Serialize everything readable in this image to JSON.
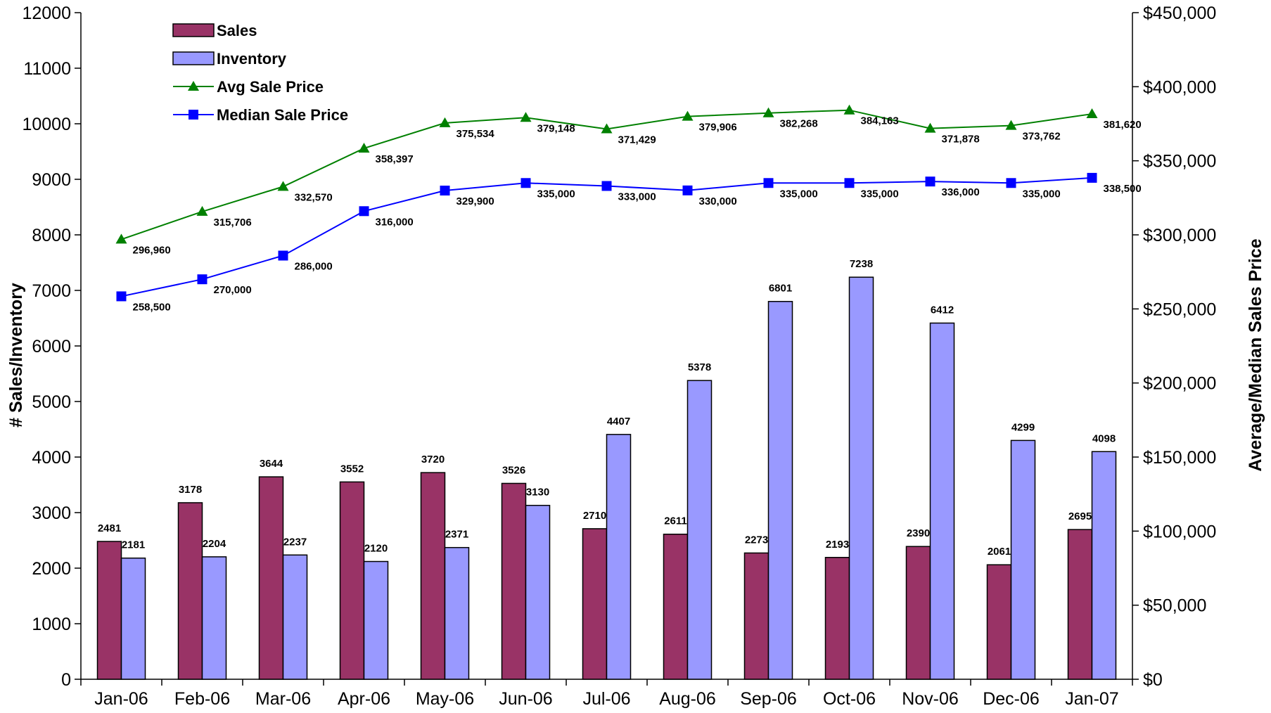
{
  "chart_data": {
    "type": "bar",
    "categories": [
      "Jan-06",
      "Feb-06",
      "Mar-06",
      "Apr-06",
      "May-06",
      "Jun-06",
      "Jul-06",
      "Aug-06",
      "Sep-06",
      "Oct-06",
      "Nov-06",
      "Dec-06",
      "Jan-07"
    ],
    "ylabel": "# Sales/Inventory",
    "y2label": "Average/Median Sales Price",
    "ylim": [
      0,
      12000
    ],
    "y2lim": [
      0,
      450000
    ],
    "y_ticks": [
      "0",
      "1000",
      "2000",
      "3000",
      "4000",
      "5000",
      "6000",
      "7000",
      "8000",
      "9000",
      "10000",
      "11000",
      "12000"
    ],
    "y2_ticks": [
      "$0",
      "$50,000",
      "$100,000",
      "$150,000",
      "$200,000",
      "$250,000",
      "$300,000",
      "$350,000",
      "$400,000",
      "$450,000"
    ],
    "grid": false,
    "legend_position": "top-left",
    "series": [
      {
        "name": "Sales",
        "kind": "bar",
        "axis": "left",
        "color": "#993366",
        "values": [
          2481,
          3178,
          3644,
          3552,
          3720,
          3526,
          2710,
          2611,
          2273,
          2193,
          2390,
          2061,
          2695
        ],
        "labels": [
          "2481",
          "3178",
          "3644",
          "3552",
          "3720",
          "3526",
          "2710",
          "2611",
          "2273",
          "2193",
          "2390",
          "2061",
          "2695"
        ]
      },
      {
        "name": "Inventory",
        "kind": "bar",
        "axis": "left",
        "color": "#9999ff",
        "values": [
          2181,
          2204,
          2237,
          2120,
          2371,
          3130,
          4407,
          5378,
          6801,
          7238,
          6412,
          4299,
          4098
        ],
        "labels": [
          "2181",
          "2204",
          "2237",
          "2120",
          "2371",
          "3130",
          "4407",
          "5378",
          "6801",
          "7238",
          "6412",
          "4299",
          "4098"
        ]
      },
      {
        "name": "Avg Sale Price",
        "kind": "line",
        "axis": "right",
        "color": "#008000",
        "marker": "triangle",
        "values": [
          296960,
          315706,
          332570,
          358397,
          375534,
          379148,
          371429,
          379906,
          382268,
          384163,
          371878,
          373762,
          381620
        ],
        "labels": [
          "296,960",
          "315,706",
          "332,570",
          "358,397",
          "375,534",
          "379,148",
          "371,429",
          "379,906",
          "382,268",
          "384,163",
          "371,878",
          "373,762",
          "381,620"
        ]
      },
      {
        "name": "Median Sale Price",
        "kind": "line",
        "axis": "right",
        "color": "#0000ff",
        "marker": "square",
        "values": [
          258500,
          270000,
          286000,
          316000,
          329900,
          335000,
          333000,
          330000,
          335000,
          335000,
          336000,
          335000,
          338500
        ],
        "labels": [
          "258,500",
          "270,000",
          "286,000",
          "316,000",
          "329,900",
          "335,000",
          "333,000",
          "330,000",
          "335,000",
          "335,000",
          "336,000",
          "335,000",
          "338,500"
        ]
      }
    ]
  }
}
